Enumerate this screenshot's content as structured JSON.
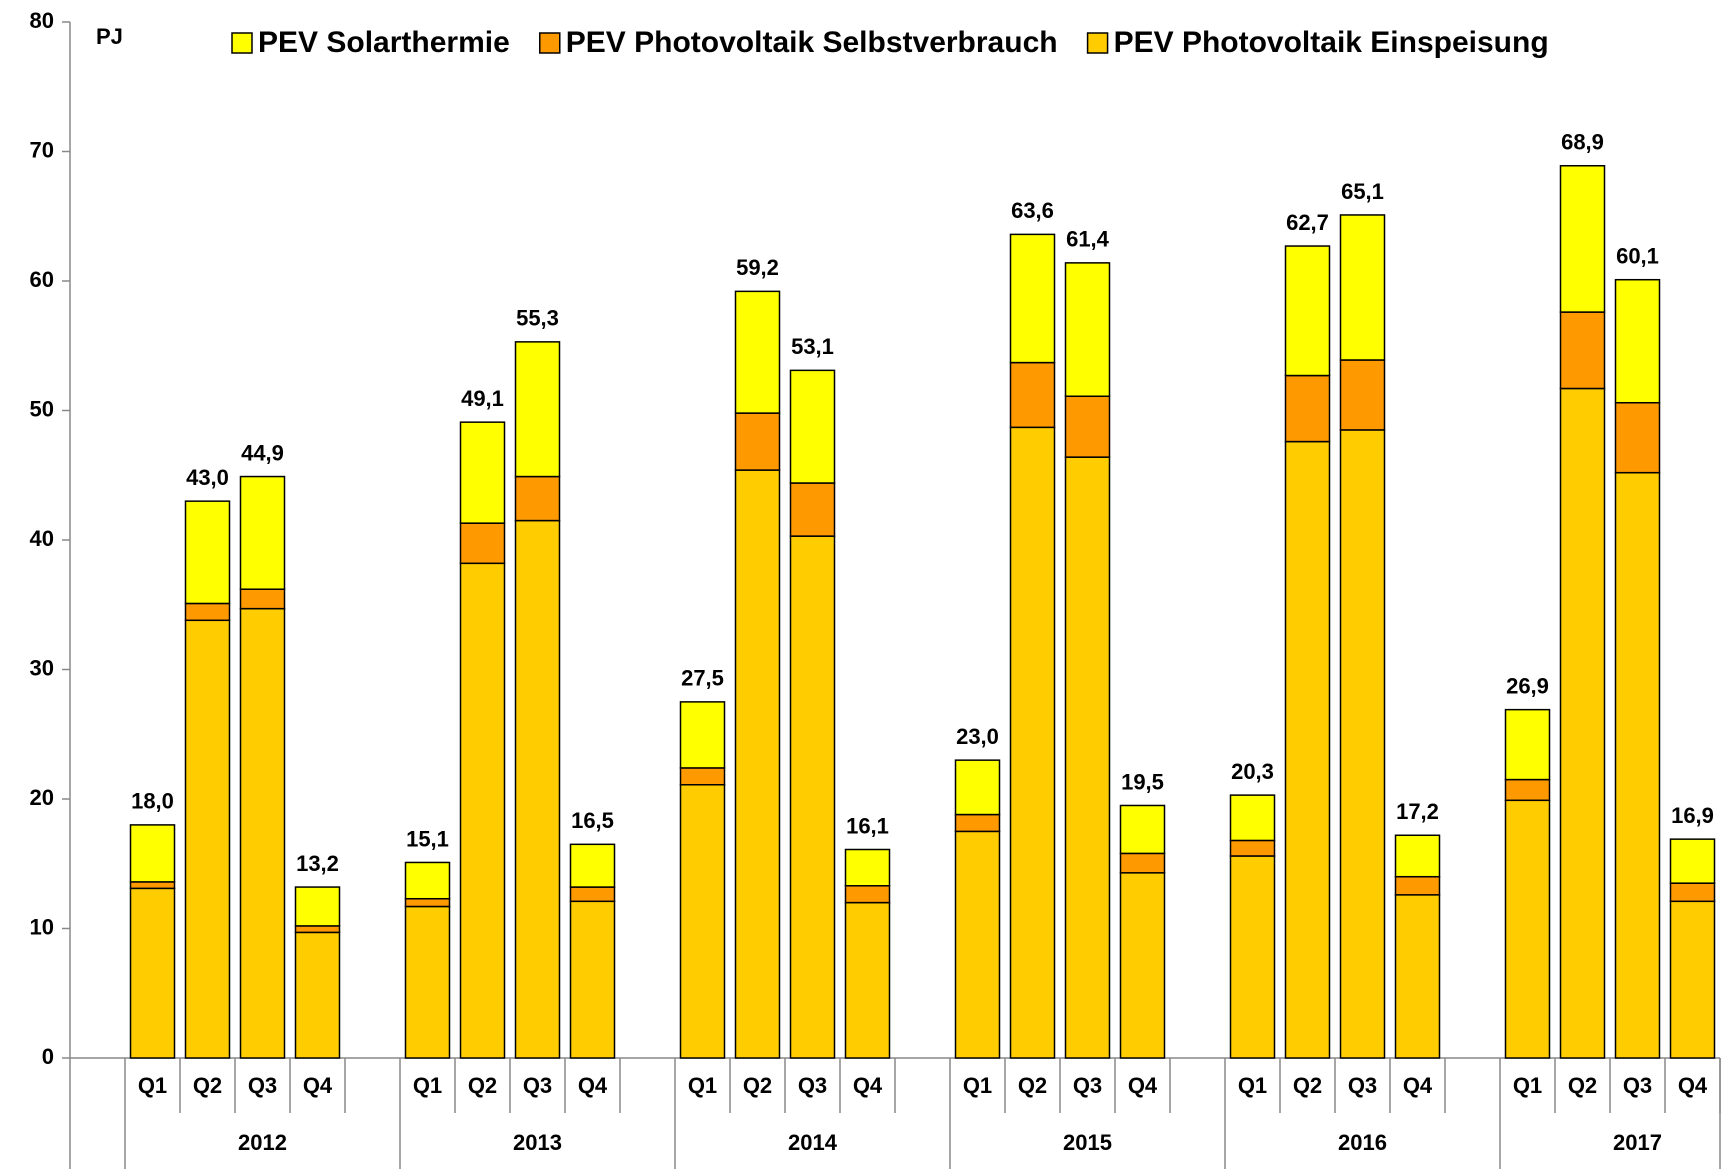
{
  "chart_data": {
    "type": "stacked_bar",
    "y_axis_label": "PJ",
    "groups": [
      "2012",
      "2013",
      "2014",
      "2015",
      "2016",
      "2017"
    ],
    "categories": [
      "Q1",
      "Q2",
      "Q3",
      "Q4",
      "Q1",
      "Q2",
      "Q3",
      "Q4",
      "Q1",
      "Q2",
      "Q3",
      "Q4",
      "Q1",
      "Q2",
      "Q3",
      "Q4",
      "Q1",
      "Q2",
      "Q3",
      "Q4",
      "Q1",
      "Q2",
      "Q3",
      "Q4"
    ],
    "series": [
      {
        "name": "PEV Photovoltaik Einspeisung",
        "color": "#ffcc00",
        "values": [
          13.1,
          33.8,
          34.7,
          9.7,
          11.7,
          38.2,
          41.5,
          12.1,
          21.1,
          45.4,
          40.3,
          12.0,
          17.5,
          48.7,
          46.4,
          14.3,
          15.6,
          47.6,
          48.5,
          12.6,
          19.9,
          51.7,
          45.2,
          12.1
        ]
      },
      {
        "name": "PEV Photovoltaik Selbstverbrauch",
        "color": "#ff9900",
        "values": [
          0.5,
          1.3,
          1.5,
          0.5,
          0.6,
          3.1,
          3.4,
          1.1,
          1.3,
          4.4,
          4.1,
          1.3,
          1.3,
          5.0,
          4.7,
          1.5,
          1.2,
          5.1,
          5.4,
          1.4,
          1.6,
          5.9,
          5.4,
          1.4
        ]
      },
      {
        "name": "PEV Solarthermie",
        "color": "#ffff00",
        "values": [
          4.4,
          7.9,
          8.7,
          3.0,
          2.8,
          7.8,
          10.4,
          3.3,
          5.1,
          9.4,
          8.7,
          2.8,
          4.2,
          9.9,
          10.3,
          3.7,
          3.5,
          10.0,
          11.2,
          3.2,
          5.4,
          11.3,
          9.5,
          3.4
        ]
      }
    ],
    "totals": [
      18.0,
      43.0,
      44.9,
      13.2,
      15.1,
      49.1,
      55.3,
      16.5,
      27.5,
      59.2,
      53.1,
      16.1,
      23.0,
      63.6,
      61.4,
      19.5,
      20.3,
      62.7,
      65.1,
      17.2,
      26.9,
      68.9,
      60.1,
      16.9
    ],
    "total_labels": [
      "18,0",
      "43,0",
      "44,9",
      "13,2",
      "15,1",
      "49,1",
      "55,3",
      "16,5",
      "27,5",
      "59,2",
      "53,1",
      "16,1",
      "23,0",
      "63,6",
      "61,4",
      "19,5",
      "20,3",
      "62,7",
      "65,1",
      "17,2",
      "26,9",
      "68,9",
      "60,1",
      "16,9"
    ],
    "legend_order": [
      2,
      1,
      0
    ],
    "ylim": [
      0,
      80
    ],
    "yticks": [
      0,
      10,
      20,
      30,
      40,
      50,
      60,
      70,
      80
    ],
    "grid": false
  }
}
